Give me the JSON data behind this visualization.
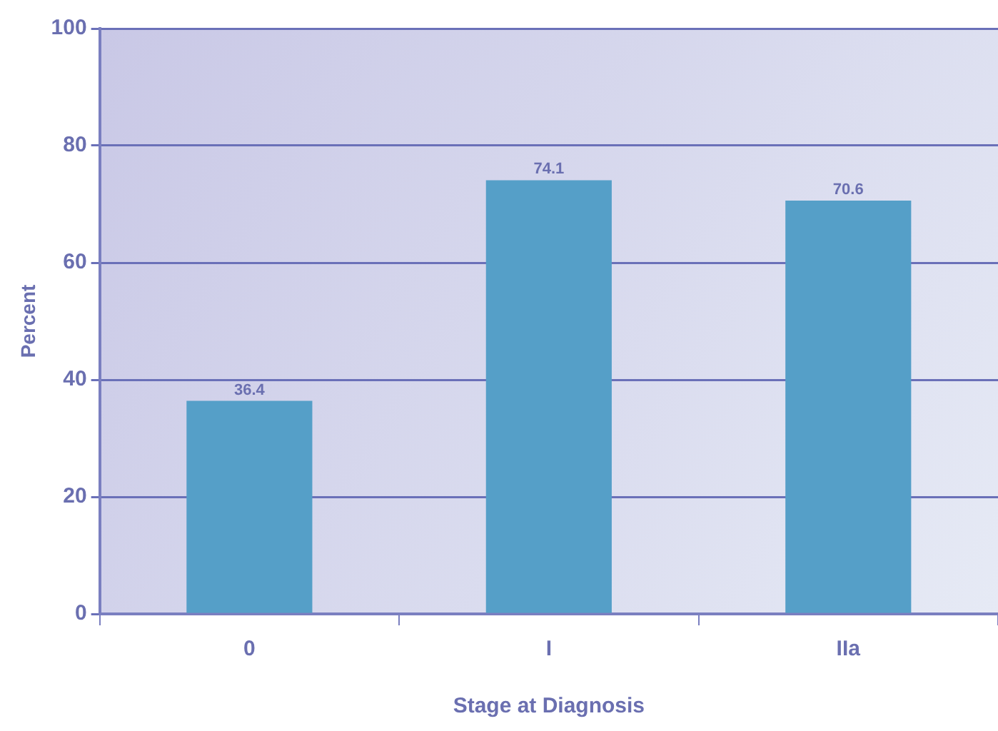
{
  "chart_data": {
    "type": "bar",
    "xlabel": "Stage at Diagnosis",
    "ylabel": "Percent",
    "categories": [
      "0",
      "I",
      "IIa"
    ],
    "values": [
      36.4,
      74.1,
      70.6
    ],
    "color": "#559fc8",
    "ylim": [
      0,
      100
    ],
    "yticks": [
      0,
      20,
      40,
      60,
      80,
      100
    ],
    "grid": "y",
    "data_labels": true
  }
}
